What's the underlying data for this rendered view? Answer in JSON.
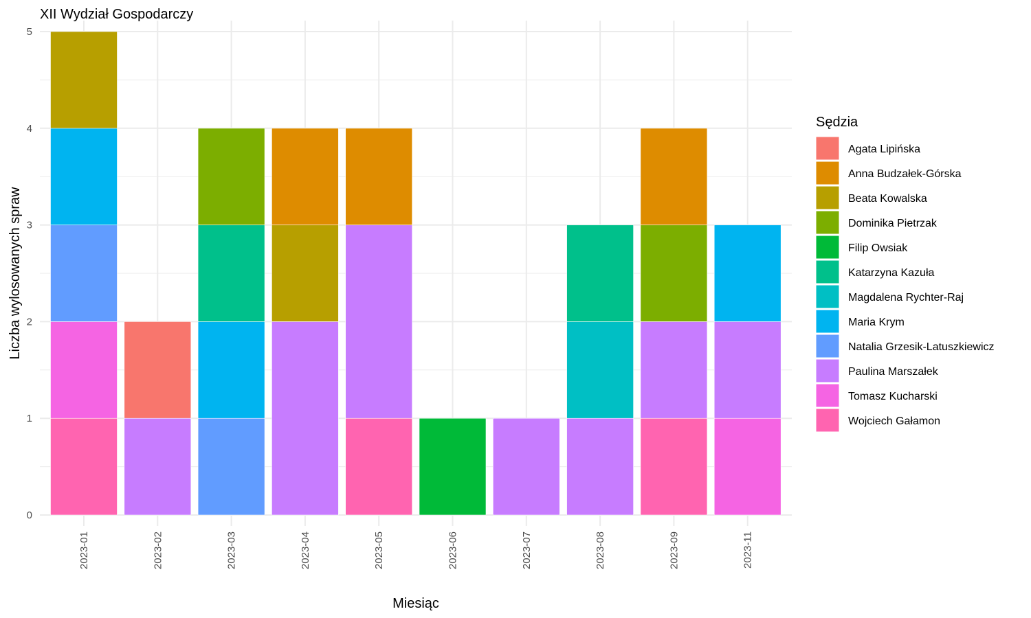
{
  "chart_data": {
    "type": "bar",
    "stacked": true,
    "title": "XII Wydział Gospodarczy",
    "xlabel": "Miesiąc",
    "ylabel": "Liczba wylosowanych spraw",
    "ylim": [
      0,
      5
    ],
    "yticks": [
      "0",
      "1",
      "2",
      "3",
      "4",
      "5"
    ],
    "grid": true,
    "legend_title": "Sędzia",
    "legend_position": "right",
    "categories": [
      "2023-01",
      "2023-02",
      "2023-03",
      "2023-04",
      "2023-05",
      "2023-06",
      "2023-07",
      "2023-08",
      "2023-09",
      "2023-11"
    ],
    "series": [
      {
        "name": "Agata Lipińska",
        "color": "#F8766D",
        "values": [
          0,
          1,
          0,
          0,
          0,
          0,
          0,
          0,
          0,
          0
        ]
      },
      {
        "name": "Anna Budzałek-Górska",
        "color": "#DE8C00",
        "values": [
          0,
          0,
          0,
          1,
          1,
          0,
          0,
          0,
          1,
          0
        ]
      },
      {
        "name": "Beata Kowalska",
        "color": "#B79F00",
        "values": [
          1,
          0,
          0,
          1,
          0,
          0,
          0,
          0,
          0,
          0
        ]
      },
      {
        "name": "Dominika Pietrzak",
        "color": "#7CAE00",
        "values": [
          0,
          0,
          1,
          0,
          0,
          0,
          0,
          0,
          1,
          0
        ]
      },
      {
        "name": "Filip Owsiak",
        "color": "#00BA38",
        "values": [
          0,
          0,
          0,
          0,
          0,
          1,
          0,
          0,
          0,
          0
        ]
      },
      {
        "name": "Katarzyna Kazuła",
        "color": "#00C08B",
        "values": [
          0,
          0,
          1,
          0,
          0,
          0,
          0,
          1,
          0,
          0
        ]
      },
      {
        "name": "Magdalena Rychter-Raj",
        "color": "#00BFC4",
        "values": [
          0,
          0,
          0,
          0,
          0,
          0,
          0,
          1,
          0,
          0
        ]
      },
      {
        "name": "Maria Krym",
        "color": "#00B4F0",
        "values": [
          1,
          0,
          1,
          0,
          0,
          0,
          0,
          0,
          0,
          1
        ]
      },
      {
        "name": "Natalia Grzesik-Latuszkiewicz",
        "color": "#619CFF",
        "values": [
          1,
          0,
          1,
          0,
          0,
          0,
          0,
          0,
          0,
          0
        ]
      },
      {
        "name": "Paulina Marszałek",
        "color": "#C77CFF",
        "values": [
          0,
          1,
          0,
          2,
          2,
          0,
          1,
          1,
          1,
          1
        ]
      },
      {
        "name": "Tomasz Kucharski",
        "color": "#F564E3",
        "values": [
          1,
          0,
          0,
          0,
          0,
          0,
          0,
          0,
          0,
          1
        ]
      },
      {
        "name": "Wojciech Gałamon",
        "color": "#FF64B0",
        "values": [
          1,
          0,
          0,
          0,
          1,
          0,
          0,
          0,
          1,
          0
        ]
      }
    ]
  }
}
